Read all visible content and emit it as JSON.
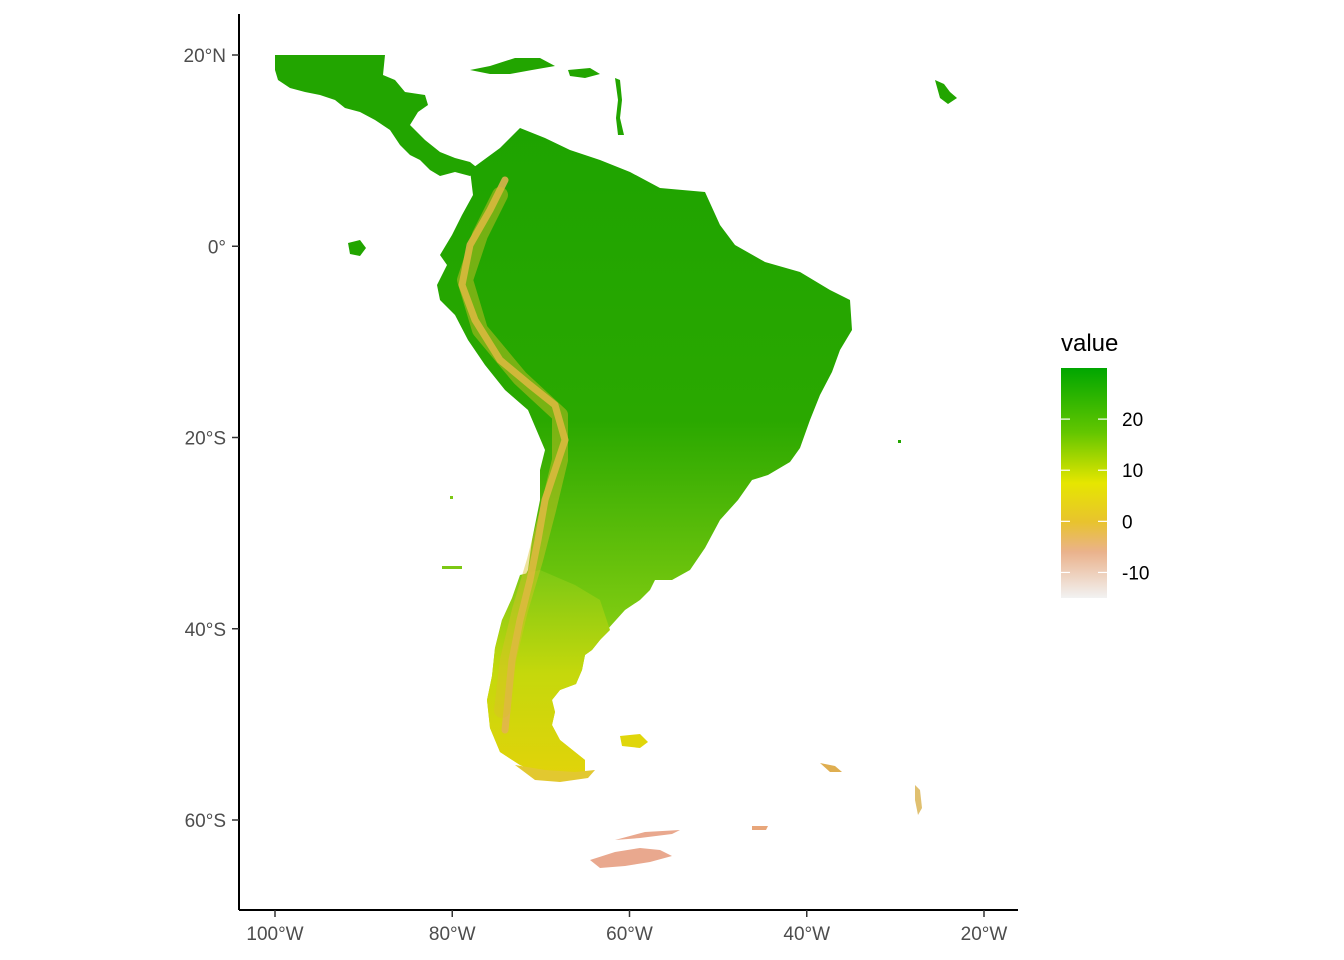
{
  "map": {
    "projection": "longitude-latitude",
    "x_axis": {
      "ticks": [
        {
          "value": -100,
          "label": "100°W"
        },
        {
          "value": -80,
          "label": "80°W"
        },
        {
          "value": -60,
          "label": "60°W"
        },
        {
          "value": -40,
          "label": "40°W"
        },
        {
          "value": -20,
          "label": "20°W"
        }
      ]
    },
    "y_axis": {
      "ticks": [
        {
          "value": 20,
          "label": "20°N"
        },
        {
          "value": 0,
          "label": "0°"
        },
        {
          "value": -20,
          "label": "20°S"
        },
        {
          "value": -40,
          "label": "40°S"
        },
        {
          "value": -60,
          "label": "60°S"
        }
      ]
    },
    "xlim": [
      -104,
      -17
    ],
    "ylim": [
      -69,
      24
    ]
  },
  "legend": {
    "title": "value",
    "range": [
      -15,
      30
    ],
    "breaks": [
      {
        "value": 20,
        "label": "20"
      },
      {
        "value": 10,
        "label": "10"
      },
      {
        "value": 0,
        "label": "0"
      },
      {
        "value": -10,
        "label": "-10"
      }
    ],
    "colors": [
      "#f2f2f2",
      "#eab28c",
      "#e8c32e",
      "#e6e600",
      "#63c600",
      "#00a600"
    ]
  }
}
